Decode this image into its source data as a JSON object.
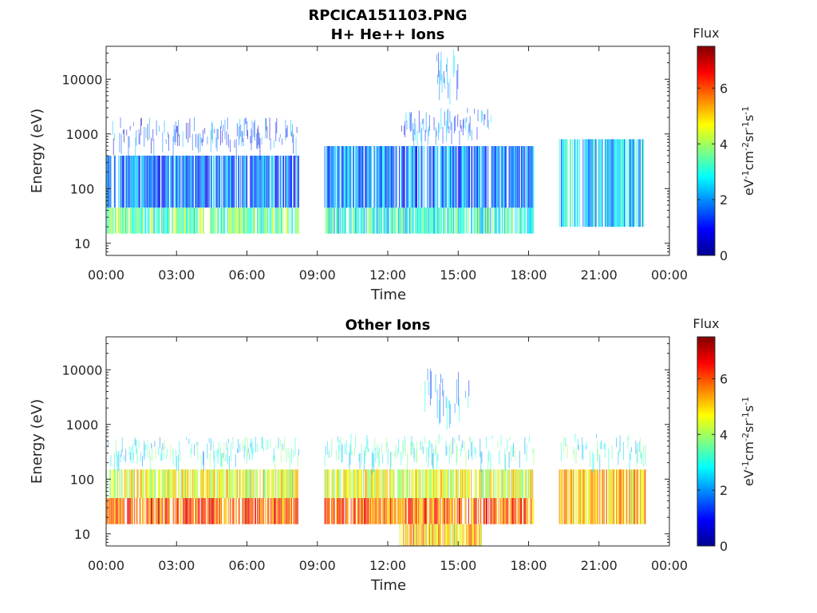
{
  "figure": {
    "filename": "RPCICA151103.PNG"
  },
  "chart_data": [
    {
      "type": "heatmap",
      "title": "H+ He++ Ions",
      "xlabel": "Time",
      "ylabel": "Energy (eV)",
      "x_ticks": [
        "00:00",
        "03:00",
        "06:00",
        "09:00",
        "12:00",
        "15:00",
        "18:00",
        "21:00",
        "00:00"
      ],
      "x_range_hours": [
        0,
        24
      ],
      "y_scale": "log",
      "y_ticks": [
        "10",
        "100",
        "1000",
        "10000"
      ],
      "y_range": [
        6,
        40000
      ],
      "colorbar": {
        "title": "Flux",
        "units": "eV-1cm-2sr-1s-1",
        "ticks": [
          "0",
          "2",
          "4",
          "6"
        ],
        "range": [
          0,
          7.5
        ],
        "colormap": "jet"
      },
      "data_gaps_hours": [
        [
          8.2,
          9.3
        ],
        [
          18.2,
          19.3
        ],
        [
          23.0,
          24.0
        ]
      ],
      "bands": [
        {
          "hours": [
            0,
            8.2
          ],
          "energy_eV": [
            15,
            45
          ],
          "level": 3.5
        },
        {
          "hours": [
            0,
            8.2
          ],
          "energy_eV": [
            45,
            400
          ],
          "level": 1.7
        },
        {
          "hours": [
            0,
            8.2
          ],
          "energy_eV": [
            400,
            2000
          ],
          "level": 1.3
        },
        {
          "hours": [
            9.3,
            18.2
          ],
          "energy_eV": [
            15,
            45
          ],
          "level": 3.0
        },
        {
          "hours": [
            9.3,
            18.2
          ],
          "energy_eV": [
            45,
            600
          ],
          "level": 1.8
        },
        {
          "hours": [
            12.5,
            16.5
          ],
          "energy_eV": [
            600,
            3000
          ],
          "level": 1.6
        },
        {
          "hours": [
            14,
            15
          ],
          "energy_eV": [
            3000,
            35000
          ],
          "level": 1.7
        },
        {
          "hours": [
            19.3,
            23
          ],
          "energy_eV": [
            20,
            800
          ],
          "level": 2.5
        }
      ]
    },
    {
      "type": "heatmap",
      "title": "Other Ions",
      "xlabel": "Time",
      "ylabel": "Energy (eV)",
      "x_ticks": [
        "00:00",
        "03:00",
        "06:00",
        "09:00",
        "12:00",
        "15:00",
        "18:00",
        "21:00",
        "00:00"
      ],
      "x_range_hours": [
        0,
        24
      ],
      "y_scale": "log",
      "y_ticks": [
        "10",
        "100",
        "1000",
        "10000"
      ],
      "y_range": [
        6,
        40000
      ],
      "colorbar": {
        "title": "Flux",
        "units": "eV-1cm-2sr-1s-1",
        "ticks": [
          "0",
          "2",
          "4",
          "6"
        ],
        "range": [
          0,
          7.5
        ],
        "colormap": "jet"
      },
      "data_gaps_hours": [
        [
          8.2,
          9.3
        ],
        [
          18.2,
          19.3
        ],
        [
          23.0,
          24.0
        ]
      ],
      "bands": [
        {
          "hours": [
            0,
            8.2
          ],
          "energy_eV": [
            15,
            45
          ],
          "level": 6.0
        },
        {
          "hours": [
            0,
            8.2
          ],
          "energy_eV": [
            45,
            150
          ],
          "level": 4.5
        },
        {
          "hours": [
            0,
            8.2
          ],
          "energy_eV": [
            150,
            600
          ],
          "level": 3.0
        },
        {
          "hours": [
            9.3,
            18.2
          ],
          "energy_eV": [
            15,
            45
          ],
          "level": 5.8
        },
        {
          "hours": [
            9.3,
            18.2
          ],
          "energy_eV": [
            45,
            150
          ],
          "level": 4.5
        },
        {
          "hours": [
            9.3,
            18.2
          ],
          "energy_eV": [
            150,
            700
          ],
          "level": 3.0
        },
        {
          "hours": [
            12.5,
            16
          ],
          "energy_eV": [
            6,
            15
          ],
          "level": 5.0
        },
        {
          "hours": [
            13.5,
            15.5
          ],
          "energy_eV": [
            700,
            12000
          ],
          "level": 2.0
        },
        {
          "hours": [
            19.3,
            23
          ],
          "energy_eV": [
            15,
            150
          ],
          "level": 5.2
        },
        {
          "hours": [
            19.3,
            23
          ],
          "energy_eV": [
            150,
            700
          ],
          "level": 3.0
        }
      ]
    }
  ]
}
